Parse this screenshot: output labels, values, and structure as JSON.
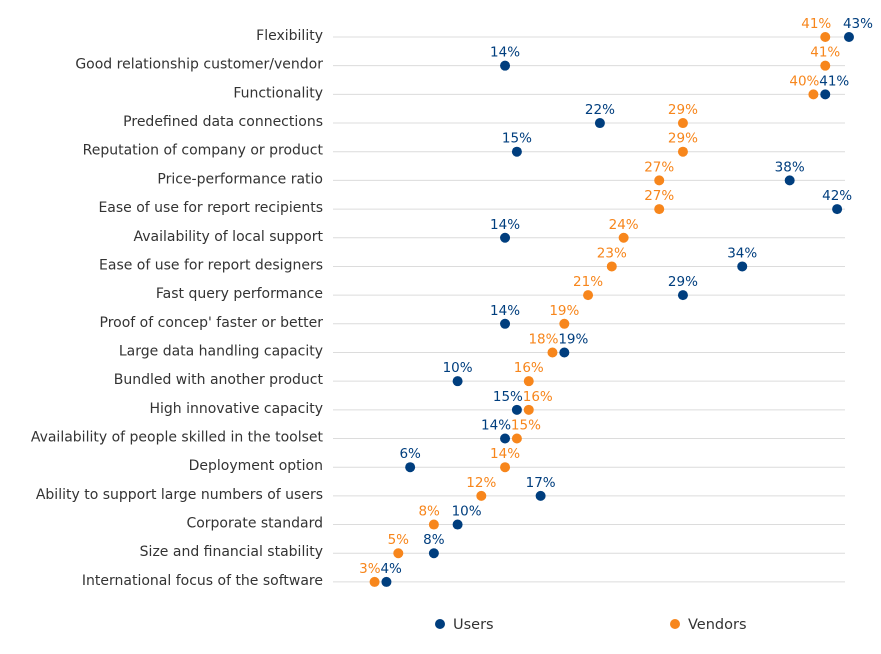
{
  "chart_data": {
    "type": "scatter",
    "unit": "%",
    "xlim": [
      0,
      44
    ],
    "grid": true,
    "legend_placement": "bottom",
    "categories": [
      "Flexibility",
      "Good relationship customer/vendor",
      "Functionality",
      "Predefined data connections",
      "Reputation of company or product",
      "Price-performance ratio",
      "Ease of use for report recipients",
      "Availability of local support",
      "Ease of use for report designers",
      "Fast query performance",
      "Proof of concep' faster or better",
      "Large data handling capacity",
      "Bundled with another product",
      "High innovative capacity",
      "Availability of people skilled in the toolset",
      "Deployment option",
      "Ability to support large numbers of users",
      "Corporate standard",
      "Size and financial stability",
      "International focus of the software"
    ],
    "series": [
      {
        "name": "Users",
        "color": "#003e7e",
        "values": [
          43,
          14,
          41,
          22,
          15,
          38,
          42,
          14,
          34,
          29,
          14,
          19,
          10,
          15,
          14,
          6,
          17,
          10,
          8,
          4
        ]
      },
      {
        "name": "Vendors",
        "color": "#f7861c",
        "values": [
          41,
          41,
          40,
          29,
          29,
          27,
          27,
          24,
          23,
          21,
          19,
          18,
          16,
          16,
          15,
          14,
          12,
          8,
          5,
          3
        ]
      }
    ]
  }
}
